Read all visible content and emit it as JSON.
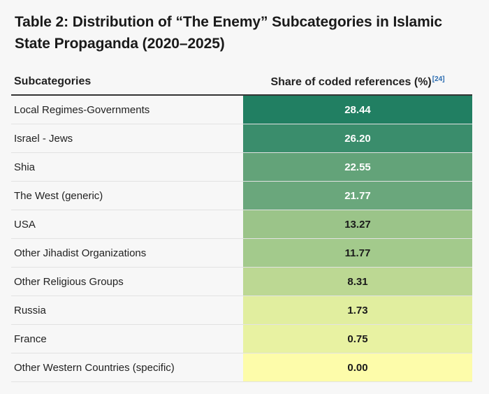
{
  "title": "Table 2: Distribution of “The Enemy” Subcategories in Islamic State Propaganda (2020–2025)",
  "chart_data": {
    "type": "table",
    "columns": [
      "Subcategories",
      "Share of coded references (%)"
    ],
    "footnote_ref": "[24]",
    "rows": [
      {
        "label": "Local Regimes-Governments",
        "value": "28.44",
        "color": "#217f62",
        "text_color": "#ffffff"
      },
      {
        "label": "Israel - Jews",
        "value": "26.20",
        "color": "#3a8d6c",
        "text_color": "#ffffff"
      },
      {
        "label": "Shia",
        "value": "22.55",
        "color": "#63a379",
        "text_color": "#ffffff"
      },
      {
        "label": "The West (generic)",
        "value": "21.77",
        "color": "#6aa77c",
        "text_color": "#ffffff"
      },
      {
        "label": "USA",
        "value": "13.27",
        "color": "#9bc489",
        "text_color": "#1a1a1a"
      },
      {
        "label": "Other Jihadist Organizations",
        "value": "11.77",
        "color": "#a3ca8c",
        "text_color": "#1a1a1a"
      },
      {
        "label": "Other Religious Groups",
        "value": "8.31",
        "color": "#bcd893",
        "text_color": "#1a1a1a"
      },
      {
        "label": "Russia",
        "value": "1.73",
        "color": "#e1ee9f",
        "text_color": "#1a1a1a"
      },
      {
        "label": "France",
        "value": "0.75",
        "color": "#e8f2a2",
        "text_color": "#1a1a1a"
      },
      {
        "label": "Other Western Countries (specific)",
        "value": "0.00",
        "color": "#fdfcaa",
        "text_color": "#1a1a1a"
      }
    ]
  }
}
